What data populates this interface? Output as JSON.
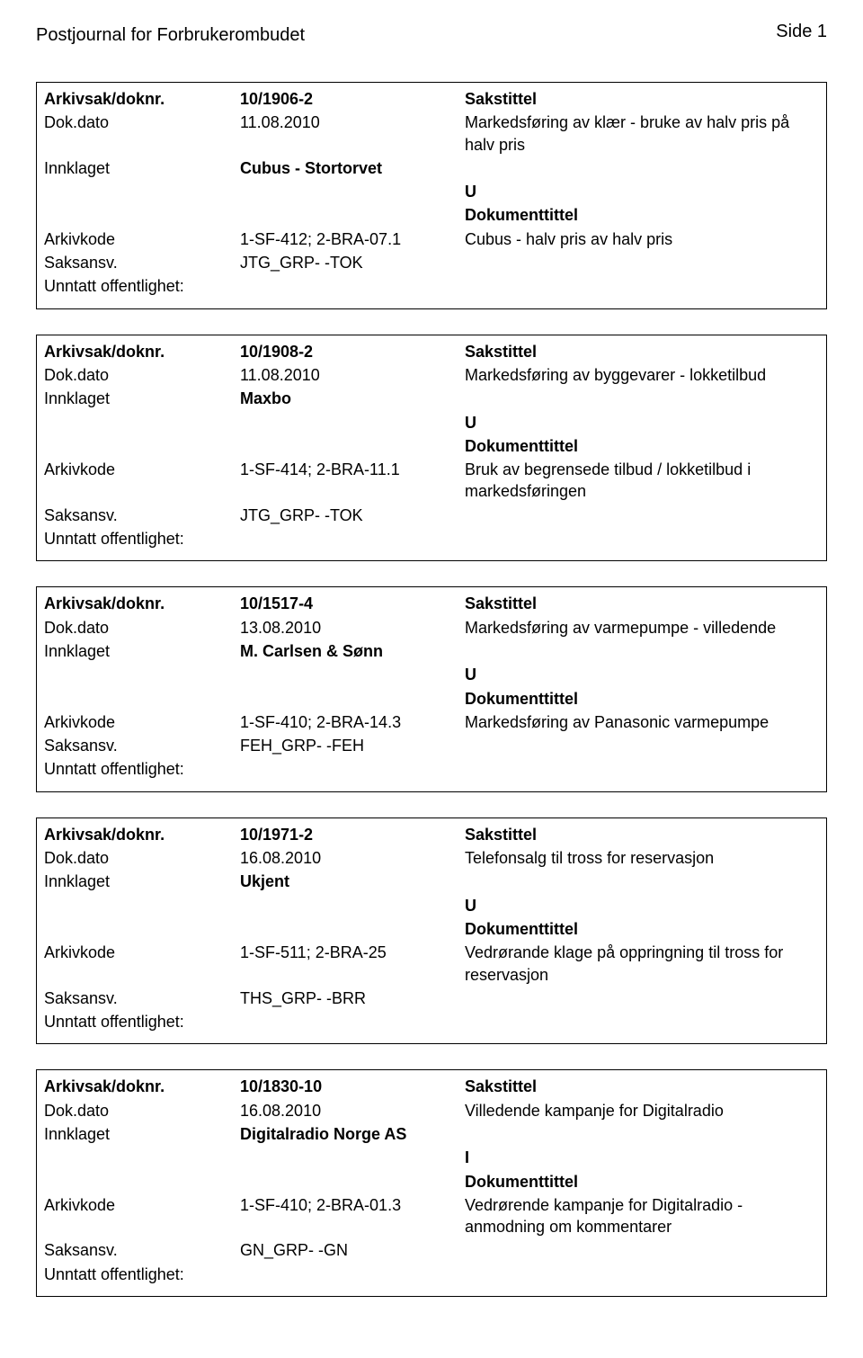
{
  "header": {
    "journal_title": "Postjournal for Forbrukerombudet",
    "page_number": "Side 1"
  },
  "labels": {
    "arkivsak": "Arkivsak/doknr.",
    "sakstittel": "Sakstittel",
    "dokdato": "Dok.dato",
    "innklaget": "Innklaget",
    "dokumenttittel": "Dokumenttittel",
    "arkivkode": "Arkivkode",
    "saksansv": "Saksansv.",
    "unntatt": "Unntatt offentlighet:"
  },
  "records": [
    {
      "doknr": "10/1906-2",
      "dokdato": "11.08.2010",
      "sakstittel": "Markedsføring av klær - bruke av halv pris på halv pris",
      "innklaget": "Cubus - Stortorvet",
      "doc_letter": "U",
      "arkivkode": "1-SF-412; 2-BRA-07.1",
      "dokumenttittel": "Cubus - halv pris av halv pris",
      "saksansv": "JTG_GRP- -TOK"
    },
    {
      "doknr": "10/1908-2",
      "dokdato": "11.08.2010",
      "sakstittel": "Markedsføring av byggevarer - lokketilbud",
      "innklaget": "Maxbo",
      "doc_letter": "U",
      "arkivkode": "1-SF-414; 2-BRA-11.1",
      "dokumenttittel": "Bruk av begrensede tilbud / lokketilbud i markedsføringen",
      "saksansv": "JTG_GRP- -TOK"
    },
    {
      "doknr": "10/1517-4",
      "dokdato": "13.08.2010",
      "sakstittel": "Markedsføring av varmepumpe - villedende",
      "innklaget": "M. Carlsen & Sønn",
      "doc_letter": "U",
      "arkivkode": "1-SF-410; 2-BRA-14.3",
      "dokumenttittel": "Markedsføring av Panasonic varmepumpe",
      "saksansv": "FEH_GRP- -FEH"
    },
    {
      "doknr": "10/1971-2",
      "dokdato": "16.08.2010",
      "sakstittel": "Telefonsalg til tross for reservasjon",
      "innklaget": "Ukjent",
      "doc_letter": "U",
      "arkivkode": "1-SF-511; 2-BRA-25",
      "dokumenttittel": "Vedrørande klage på oppringning til tross for reservasjon",
      "saksansv": "THS_GRP- -BRR"
    },
    {
      "doknr": "10/1830-10",
      "dokdato": "16.08.2010",
      "sakstittel": "Villedende kampanje for Digitalradio",
      "innklaget": "Digitalradio Norge AS",
      "doc_letter": "I",
      "arkivkode": "1-SF-410; 2-BRA-01.3",
      "dokumenttittel": "Vedrørende kampanje for Digitalradio - anmodning om kommentarer",
      "saksansv": "GN_GRP- -GN"
    }
  ]
}
